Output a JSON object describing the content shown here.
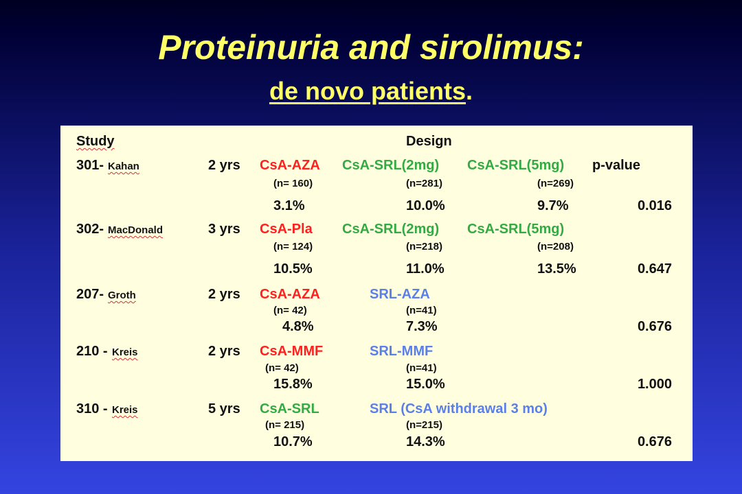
{
  "title": "Proteinuria and sirolimus:",
  "subtitle": "de novo patients",
  "subtitle_end": ".",
  "table": {
    "study_header": "Study",
    "design_header": "Design",
    "pvalue_header": "p-value",
    "studies": [
      {
        "id": "301-",
        "author": "Kahan",
        "duration": "2 yrs",
        "pvalue": "0.016",
        "arms": [
          {
            "name": "CsA-AZA",
            "color": "#ff2020",
            "n": "(n= 160)",
            "result": "3.1%"
          },
          {
            "name": "CsA-SRL(2mg)",
            "color": "#33aa44",
            "n": "(n=281)",
            "result": "10.0%"
          },
          {
            "name": "CsA-SRL(5mg)",
            "color": "#33aa44",
            "n": "(n=269)",
            "result": "9.7%"
          }
        ]
      },
      {
        "id": "302-",
        "author": "MacDonald",
        "duration": "3 yrs",
        "pvalue": "0.647",
        "arms": [
          {
            "name": "CsA-Pla",
            "color": "#ff2020",
            "n": "(n= 124)",
            "result": "10.5%"
          },
          {
            "name": "CsA-SRL(2mg)",
            "color": "#33aa44",
            "n": "(n=218)",
            "result": "11.0%"
          },
          {
            "name": "CsA-SRL(5mg)",
            "color": "#33aa44",
            "n": "(n=208)",
            "result": "13.5%"
          }
        ]
      },
      {
        "id": "207-",
        "author": "Groth",
        "duration": "2 yrs",
        "pvalue": "0.676",
        "arms": [
          {
            "name": "CsA-AZA",
            "color": "#ff2020",
            "n": "(n= 42)",
            "result": "4.8%"
          },
          {
            "name": "SRL-AZA",
            "color": "#5b7fe8",
            "n": "(n=41)",
            "result": "7.3%"
          }
        ]
      },
      {
        "id": "210 -",
        "author": "Kreis",
        "duration": "2 yrs",
        "pvalue": "1.000",
        "arms": [
          {
            "name": "CsA-MMF",
            "color": "#ff2020",
            "n": "(n= 42)",
            "result": "15.8%"
          },
          {
            "name": "SRL-MMF",
            "color": "#5b7fe8",
            "n": "(n=41)",
            "result": "15.0%"
          }
        ]
      },
      {
        "id": "310 -",
        "author": "Kreis",
        "duration": "5 yrs",
        "pvalue": "0.676",
        "arms": [
          {
            "name": "CsA-SRL",
            "color": "#33aa44",
            "n": "(n= 215)",
            "result": "10.7%"
          },
          {
            "name": "SRL (CsA withdrawal 3 mo)",
            "color": "#5b7fe8",
            "n": "(n=215)",
            "result": "14.3%"
          }
        ]
      }
    ]
  }
}
